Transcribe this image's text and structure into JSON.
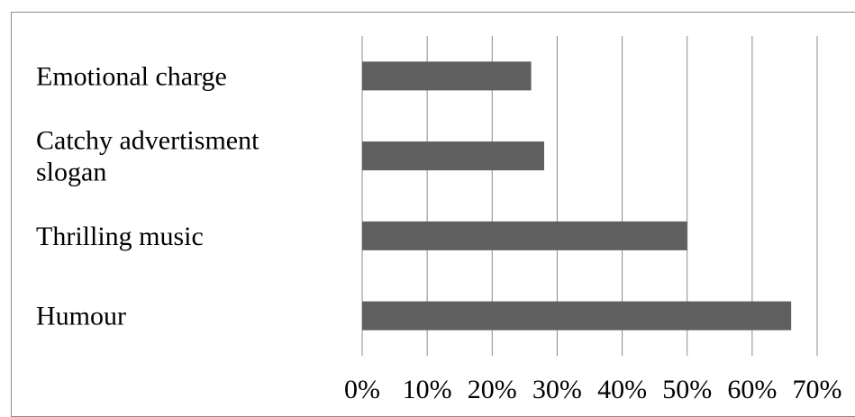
{
  "chart_data": {
    "type": "bar",
    "orientation": "horizontal",
    "categories": [
      "Emotional charge",
      "Catchy advertisment slogan",
      "Thrilling music",
      "Humour"
    ],
    "category_label_lines": [
      [
        "Emotional charge"
      ],
      [
        "Catchy advertisment",
        "slogan"
      ],
      [
        "Thrilling music"
      ],
      [
        "Humour"
      ]
    ],
    "values": [
      0.26,
      0.28,
      0.5,
      0.66
    ],
    "xlim": [
      0,
      0.7
    ],
    "xticks": [
      0,
      0.1,
      0.2,
      0.3,
      0.4,
      0.5,
      0.6,
      0.7
    ],
    "xtick_labels": [
      "0%",
      "10%",
      "20%",
      "30%",
      "40%",
      "50%",
      "60%",
      "70%"
    ],
    "grid": "vertical",
    "legend": "none",
    "title": "",
    "xlabel": "",
    "ylabel": "",
    "colors": {
      "bar": "#5f5f5f",
      "grid": "#8c8c8c",
      "frame": "#8c8c8c",
      "text": "#000000"
    }
  }
}
